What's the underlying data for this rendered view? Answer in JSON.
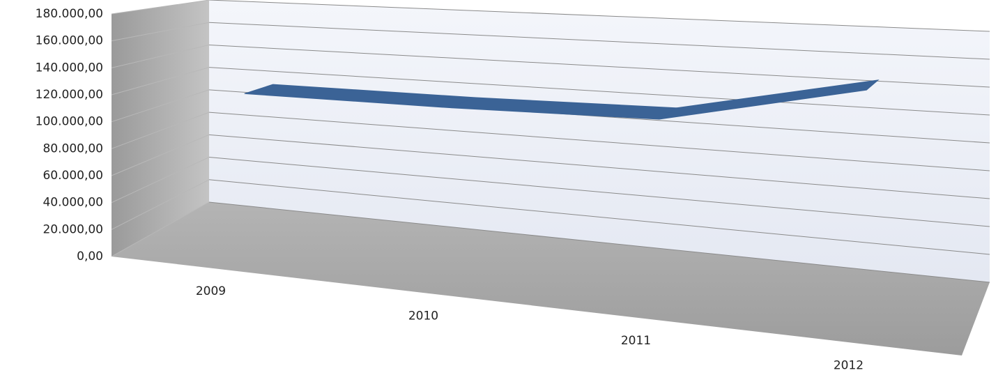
{
  "chart_data": {
    "type": "line3d",
    "categories": [
      "2009",
      "2010",
      "2011",
      "2012"
    ],
    "series": [
      {
        "color": "#3b6396",
        "values": [
          120000,
          120000,
          122000,
          150000
        ]
      }
    ],
    "ylim": [
      0,
      180000
    ],
    "yticks": [
      {
        "value": 0,
        "label": "0,00"
      },
      {
        "value": 20000,
        "label": "20.000,00"
      },
      {
        "value": 40000,
        "label": "40.000,00"
      },
      {
        "value": 60000,
        "label": "60.000,00"
      },
      {
        "value": 80000,
        "label": "80.000,00"
      },
      {
        "value": 100000,
        "label": "100.000,00"
      },
      {
        "value": 120000,
        "label": "120.000,00"
      },
      {
        "value": 140000,
        "label": "140.000,00"
      },
      {
        "value": 160000,
        "label": "160.000,00"
      },
      {
        "value": 180000,
        "label": "180.000,00"
      }
    ],
    "grid": true
  }
}
